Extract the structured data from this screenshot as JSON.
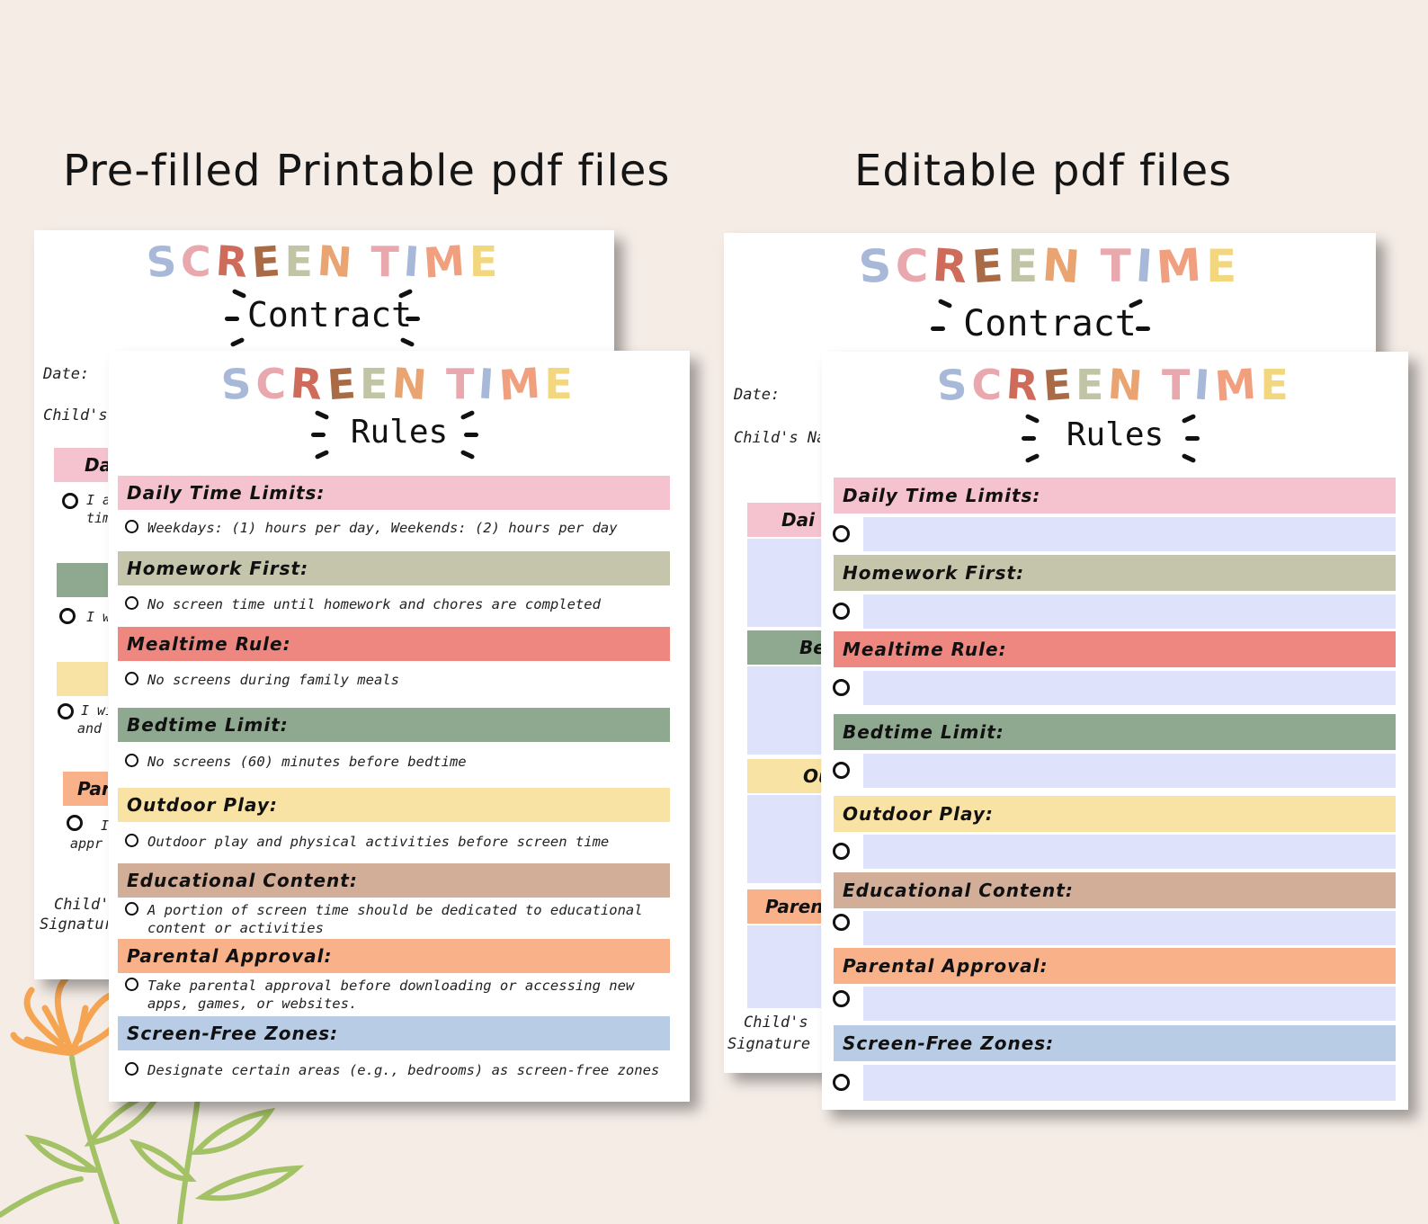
{
  "headings": {
    "left": "Pre-filled Printable pdf files",
    "right": "Editable pdf files"
  },
  "title": {
    "letters": [
      "S",
      "C",
      "R",
      "E",
      "E",
      "N",
      " ",
      "T",
      "I",
      "M",
      "E"
    ],
    "letter_colors": [
      "#a8b8d8",
      "#e9a7ae",
      "#cf6b5a",
      "#a86b46",
      "#c2c5a5",
      "#e9a472",
      " ",
      "#e9a7ae",
      "#a8b8d8",
      "#f0a07f",
      "#f2d77f"
    ],
    "contract": "Contract",
    "rules": "Rules"
  },
  "back_sheet": {
    "date_label": "Date:",
    "childs_name_label": "Child's Na",
    "childs_label": "Child's",
    "signature_label": "Signature",
    "left_partial": {
      "band1": "Da",
      "text1a": "I ag",
      "text1b": "tim",
      "text2": "I w",
      "text3a": "I wi",
      "text3b": "and",
      "band4": "Par",
      "text4a": "I",
      "text4b": "appr",
      "child_n": "Child's N",
      "childs": "Child's",
      "signatur": "Signatur"
    },
    "right_partial": {
      "band1": "Dai",
      "band2": "Be",
      "band3": "Ou",
      "band4": "Paren"
    }
  },
  "sections": [
    {
      "label": "Daily Time Limits:",
      "color": "#f5c3cf",
      "item": "Weekdays: (1) hours per day, Weekends: (2) hours per day"
    },
    {
      "label": "Homework First:",
      "color": "#c4c5ab",
      "item": "No screen time until homework and chores are completed"
    },
    {
      "label": "Mealtime Rule:",
      "color": "#ee8780",
      "item": "No screens during family meals"
    },
    {
      "label": "Bedtime Limit:",
      "color": "#8ea98f",
      "item": "No screens (60) minutes before bedtime"
    },
    {
      "label": "Outdoor Play:",
      "color": "#f8e3a4",
      "item": "Outdoor play and physical activities before screen time"
    },
    {
      "label": "Educational Content:",
      "color": "#d2ae98",
      "item": "A portion of screen time should be dedicated to educational content or activities"
    },
    {
      "label": "Parental Approval:",
      "color": "#f9b18a",
      "item": "Take parental approval before downloading or accessing new apps, games, or websites."
    },
    {
      "label": "Screen-Free Zones:",
      "color": "#b8cde5",
      "item": "Designate certain areas (e.g., bedrooms) as screen-free zones"
    }
  ],
  "colors": {
    "background": "#f5ece6",
    "editable_field": "#dee3fb",
    "flower_orange": "#f5a552",
    "stem_green": "#a3c165"
  }
}
